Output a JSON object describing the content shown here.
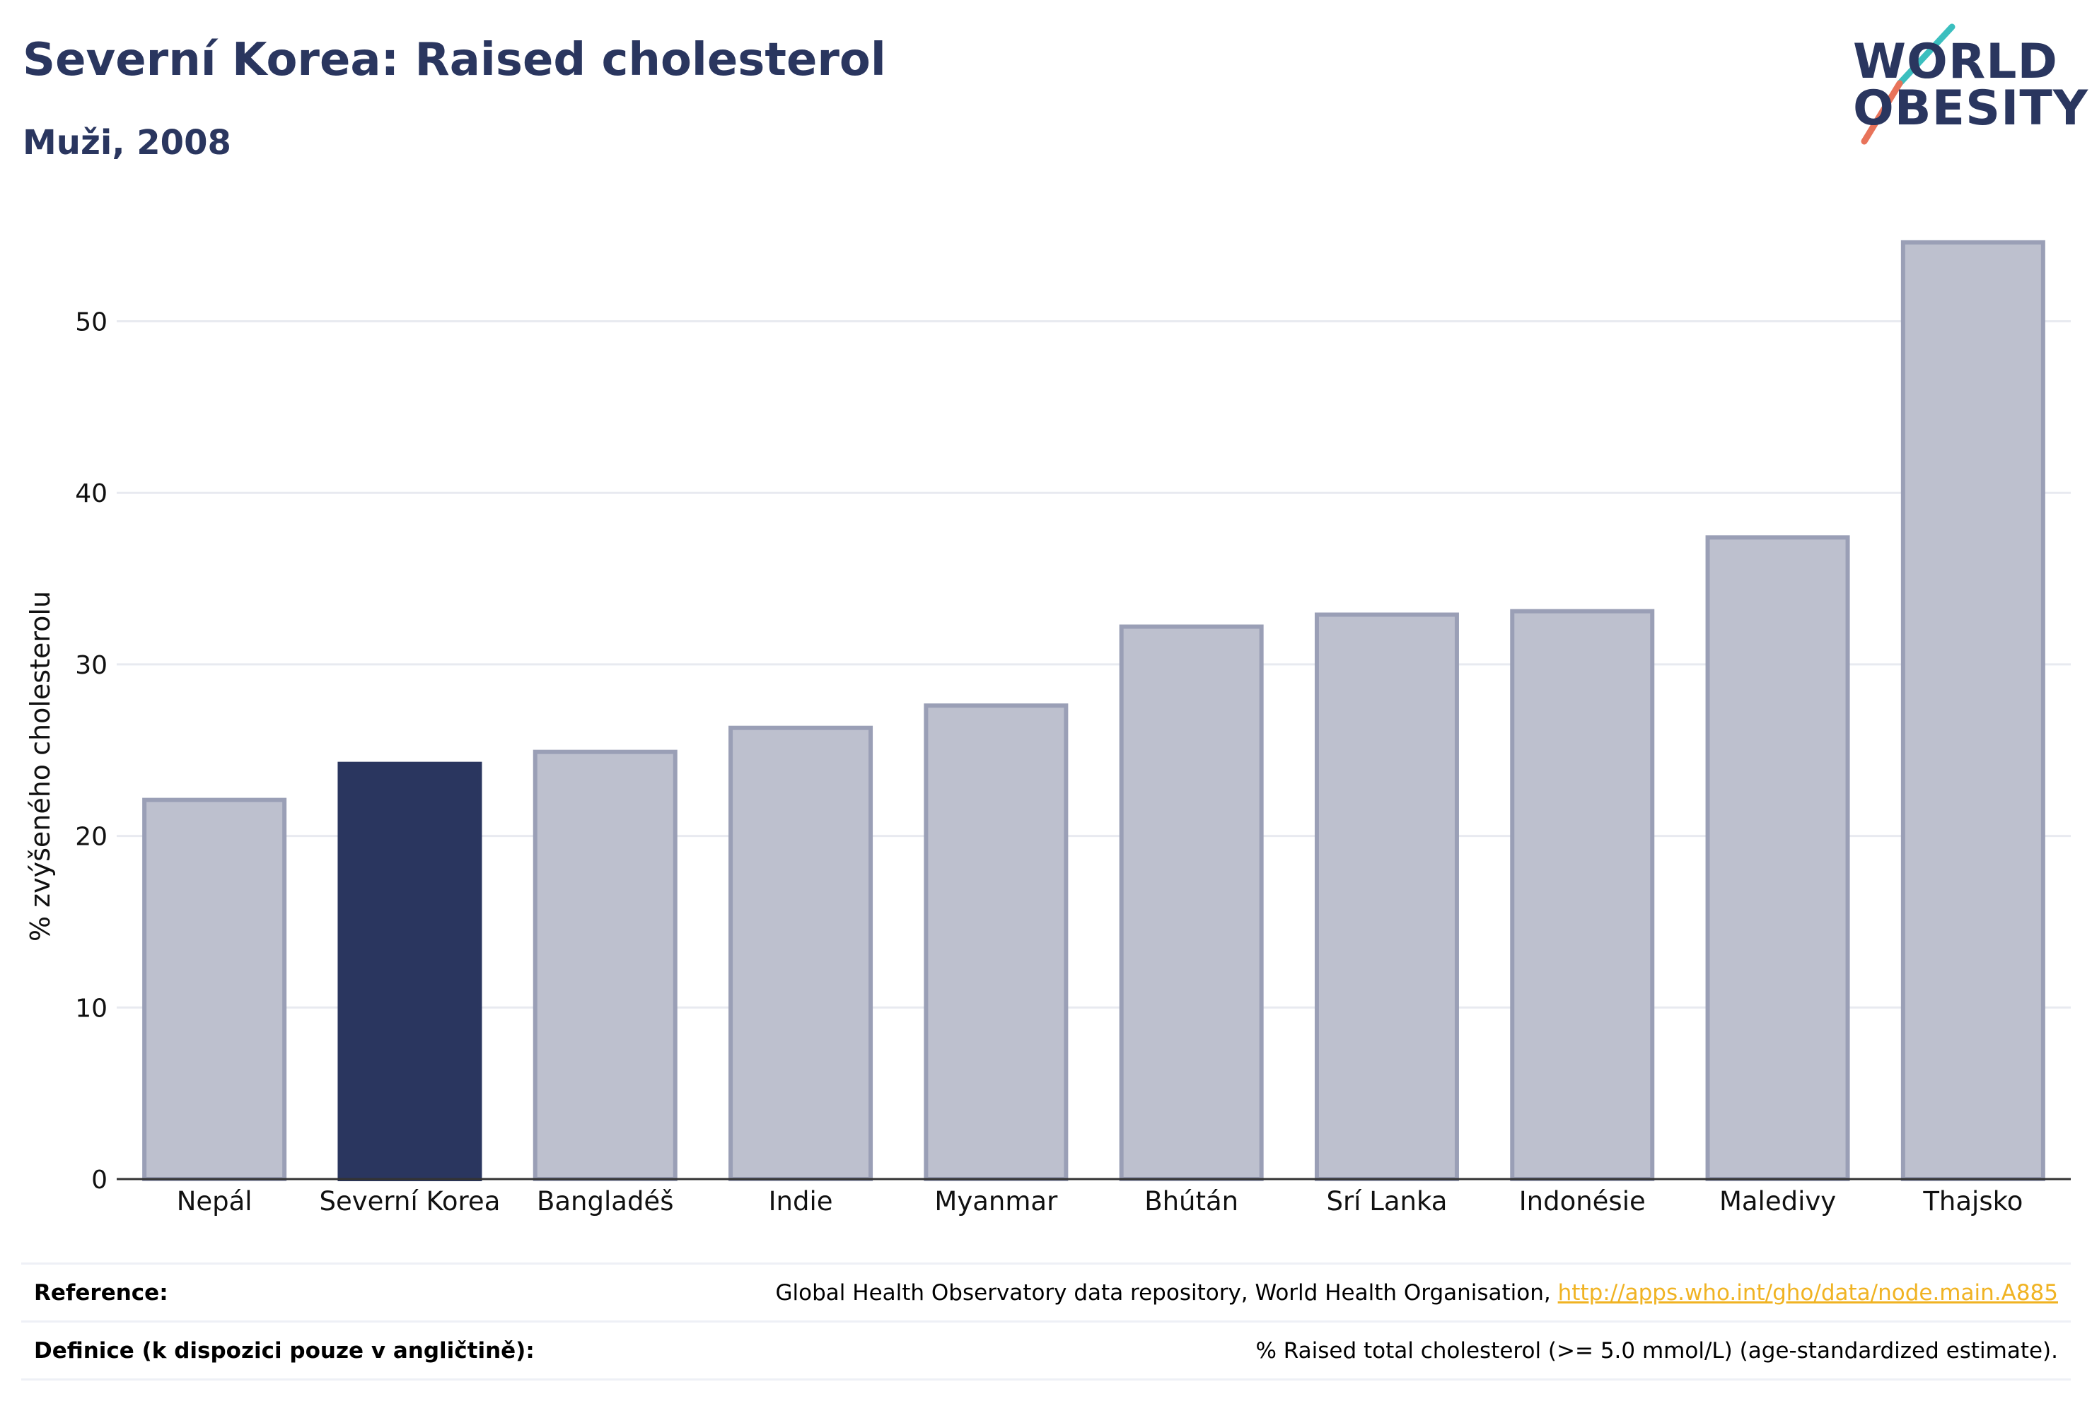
{
  "header": {
    "title": "Severní Korea: Raised cholesterol",
    "subtitle": "Muži, 2008"
  },
  "logo": {
    "line1": "WORLD",
    "line2": "OBESITY",
    "accent_colors": [
      "#3bbfbf",
      "#e8735a"
    ]
  },
  "colors": {
    "highlight": "#2a365f",
    "bar_fill": "#bdc0ce",
    "bar_stroke": "#9a9fb6",
    "grid": "#e8eaf0",
    "link": "#f0b323"
  },
  "chart_data": {
    "type": "bar",
    "ylabel": "% zvýšeného cholesterolu",
    "ylim": [
      0,
      56
    ],
    "yticks": [
      0,
      10,
      20,
      30,
      40,
      50
    ],
    "grid": true,
    "categories": [
      "Nepál",
      "Severní Korea",
      "Bangladéš",
      "Indie",
      "Myanmar",
      "Bhútán",
      "Srí Lanka",
      "Indonésie",
      "Maledivy",
      "Thajsko"
    ],
    "values": [
      22.1,
      24.2,
      24.9,
      26.3,
      27.6,
      32.2,
      32.9,
      33.1,
      37.4,
      54.6
    ],
    "highlight_category": "Severní Korea"
  },
  "footer": {
    "reference_label": "Reference:",
    "reference_text": "Global Health Observatory data repository, World Health Organisation, ",
    "reference_link": "http://apps.who.int/gho/data/node.main.A885",
    "definition_label": "Definice (k dispozici pouze v angličtině):",
    "definition_text": "% Raised total cholesterol (>= 5.0 mmol/L) (age-standardized estimate)."
  }
}
